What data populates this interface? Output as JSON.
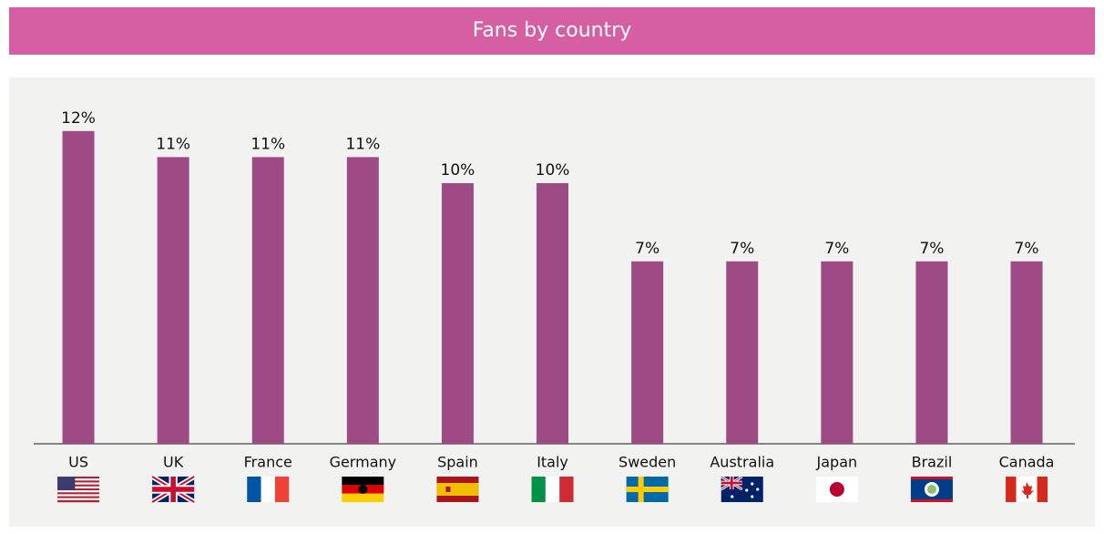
{
  "chart_data": {
    "type": "bar",
    "title": "Fans by country",
    "categories": [
      "US",
      "UK",
      "France",
      "Germany",
      "Spain",
      "Italy",
      "Sweden",
      "Australia",
      "Japan",
      "Brazil",
      "Canada"
    ],
    "values": [
      12,
      11,
      11,
      11,
      10,
      10,
      7,
      7,
      7,
      7,
      7
    ],
    "value_labels": [
      "12%",
      "11%",
      "11%",
      "11%",
      "10%",
      "10%",
      "7%",
      "7%",
      "7%",
      "7%",
      "7%"
    ],
    "color": "#9e4a85"
  }
}
